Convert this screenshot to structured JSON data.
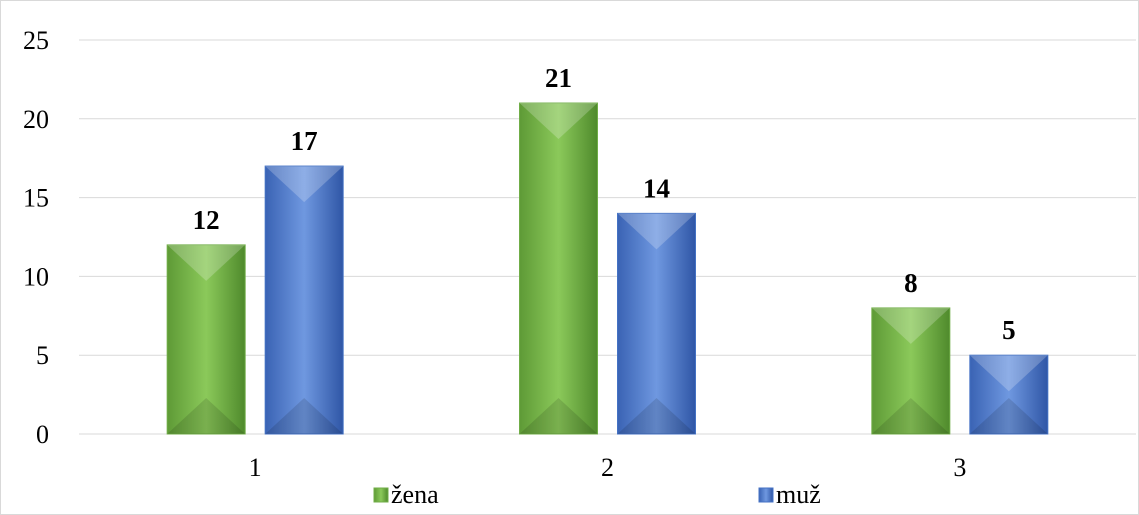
{
  "chart_data": {
    "type": "bar",
    "categories": [
      "1",
      "2",
      "3"
    ],
    "series": [
      {
        "name": "žena",
        "values": [
          12,
          21,
          8
        ],
        "color": "#70ad47"
      },
      {
        "name": "muž",
        "values": [
          17,
          14,
          5
        ],
        "color": "#4472c4"
      }
    ],
    "yticks": [
      "0",
      "5",
      "10",
      "15",
      "20",
      "25"
    ],
    "ylim": [
      0,
      25
    ],
    "grid": true,
    "legend_position": "bottom",
    "data_labels": true,
    "title": "",
    "xlabel": "",
    "ylabel": ""
  }
}
